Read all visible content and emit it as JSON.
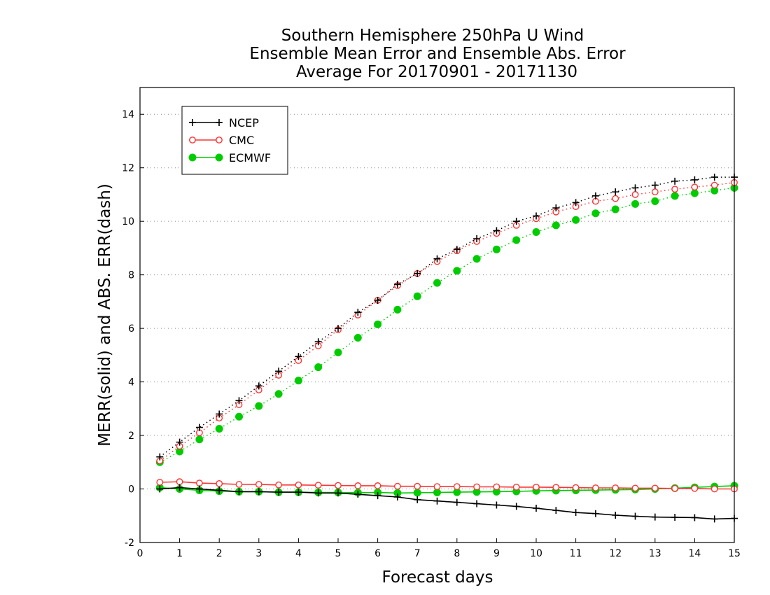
{
  "chart_data": {
    "type": "line",
    "title": [
      "Southern Hemisphere 250hPa U Wind",
      "Ensemble Mean Error and Ensemble Abs. Error",
      "Average For 20170901 - 20171130"
    ],
    "xlabel": "Forecast days",
    "ylabel": "MERR(solid) and ABS. ERR(dash)",
    "xlim": [
      0,
      15
    ],
    "ylim": [
      -2,
      15
    ],
    "xticks": [
      0,
      1,
      2,
      3,
      4,
      5,
      6,
      7,
      8,
      9,
      10,
      11,
      12,
      13,
      14,
      15
    ],
    "yticks": [
      -2,
      0,
      2,
      4,
      6,
      8,
      10,
      12,
      14
    ],
    "grid": "horizontal dotted",
    "legend_position": "top-left",
    "x": [
      0.5,
      1.0,
      1.5,
      2.0,
      2.5,
      3.0,
      3.5,
      4.0,
      4.5,
      5.0,
      5.5,
      6.0,
      6.5,
      7.0,
      7.5,
      8.0,
      8.5,
      9.0,
      9.5,
      10.0,
      10.5,
      11.0,
      11.5,
      12.0,
      12.5,
      13.0,
      13.5,
      14.0,
      14.5,
      15.0
    ],
    "series": [
      {
        "name": "NCEP",
        "color": "#000000",
        "marker": "plus",
        "merr": [
          0.0,
          0.05,
          0.0,
          -0.05,
          -0.1,
          -0.1,
          -0.12,
          -0.12,
          -0.15,
          -0.15,
          -0.2,
          -0.25,
          -0.3,
          -0.4,
          -0.45,
          -0.5,
          -0.55,
          -0.6,
          -0.65,
          -0.72,
          -0.8,
          -0.88,
          -0.92,
          -0.98,
          -1.02,
          -1.05,
          -1.06,
          -1.07,
          -1.12,
          -1.1
        ],
        "abs_err": [
          1.2,
          1.75,
          2.3,
          2.8,
          3.3,
          3.85,
          4.4,
          4.95,
          5.5,
          6.0,
          6.6,
          7.05,
          7.65,
          8.05,
          8.6,
          8.95,
          9.35,
          9.65,
          10.0,
          10.2,
          10.5,
          10.7,
          10.95,
          11.1,
          11.25,
          11.35,
          11.5,
          11.55,
          11.65,
          11.65
        ]
      },
      {
        "name": "CMC",
        "color": "#ff3333",
        "marker": "open-circle",
        "merr": [
          0.25,
          0.27,
          0.22,
          0.2,
          0.17,
          0.17,
          0.15,
          0.15,
          0.14,
          0.13,
          0.12,
          0.12,
          0.1,
          0.1,
          0.09,
          0.09,
          0.08,
          0.08,
          0.07,
          0.07,
          0.06,
          0.05,
          0.04,
          0.04,
          0.03,
          0.03,
          0.02,
          0.02,
          0.0,
          0.0
        ],
        "abs_err": [
          1.05,
          1.6,
          2.1,
          2.65,
          3.15,
          3.7,
          4.25,
          4.8,
          5.35,
          5.95,
          6.5,
          7.05,
          7.6,
          8.05,
          8.5,
          8.9,
          9.25,
          9.55,
          9.85,
          10.1,
          10.35,
          10.55,
          10.75,
          10.85,
          11.0,
          11.1,
          11.2,
          11.28,
          11.35,
          11.45
        ]
      },
      {
        "name": "ECMWF",
        "color": "#00cc00",
        "marker": "filled-circle",
        "merr": [
          0.05,
          0.0,
          -0.05,
          -0.08,
          -0.1,
          -0.1,
          -0.12,
          -0.12,
          -0.13,
          -0.13,
          -0.14,
          -0.13,
          -0.15,
          -0.14,
          -0.13,
          -0.12,
          -0.11,
          -0.1,
          -0.09,
          -0.07,
          -0.06,
          -0.05,
          -0.04,
          -0.03,
          -0.02,
          0.0,
          0.03,
          0.06,
          0.09,
          0.12
        ],
        "abs_err": [
          1.0,
          1.4,
          1.85,
          2.25,
          2.7,
          3.1,
          3.55,
          4.05,
          4.55,
          5.1,
          5.65,
          6.15,
          6.7,
          7.2,
          7.7,
          8.15,
          8.6,
          8.95,
          9.3,
          9.6,
          9.85,
          10.05,
          10.3,
          10.45,
          10.65,
          10.75,
          10.95,
          11.05,
          11.15,
          11.25
        ]
      }
    ]
  }
}
